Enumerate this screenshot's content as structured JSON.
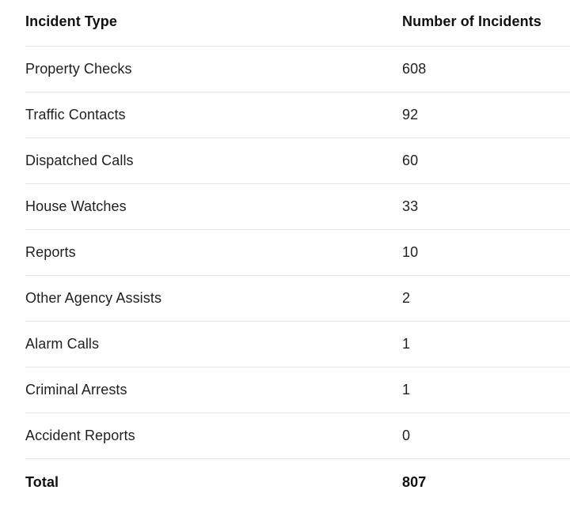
{
  "table": {
    "headers": [
      "Incident Type",
      "Number of Incidents"
    ],
    "rows": [
      [
        "Property Checks",
        "608"
      ],
      [
        "Traffic Contacts",
        "92"
      ],
      [
        "Dispatched Calls",
        "60"
      ],
      [
        "House Watches",
        "33"
      ],
      [
        "Reports",
        "10"
      ],
      [
        "Other Agency Assists",
        "2"
      ],
      [
        "Alarm Calls",
        "1"
      ],
      [
        "Criminal Arrests",
        "1"
      ],
      [
        "Accident Reports",
        "0"
      ]
    ],
    "total": [
      "Total",
      "807"
    ]
  }
}
